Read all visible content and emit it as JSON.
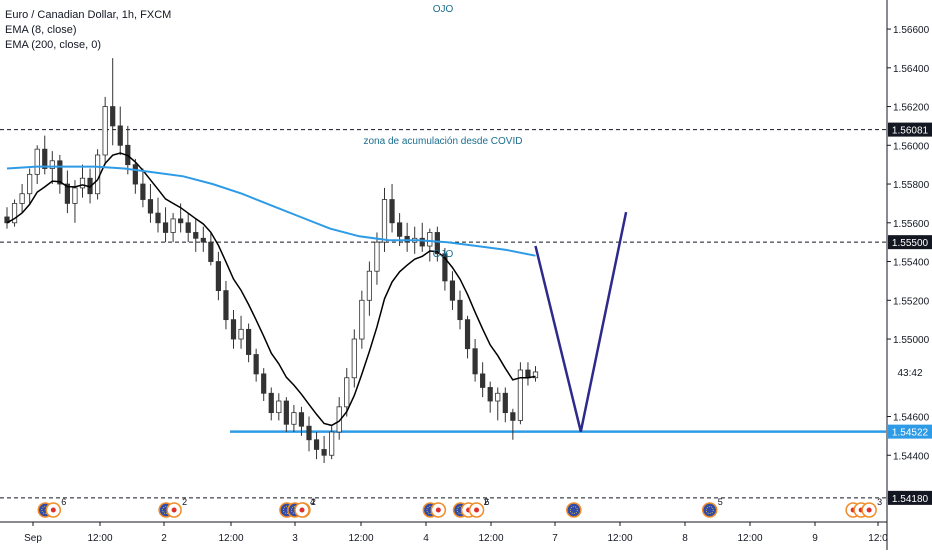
{
  "legend": {
    "symbol": "Euro / Canadian Dollar, 1h, FXCM",
    "ema_short": "EMA (8, close)",
    "ema_long": "EMA (200, close, 0)"
  },
  "annotations": {
    "top_label": "OJO",
    "mid_label": "OJO",
    "zone_label": "zona de acumulación desde COVID"
  },
  "chart_data": {
    "type": "candlestick",
    "x_ticks": [
      "Sep",
      "12:00",
      "2",
      "12:00",
      "3",
      "12:00",
      "4",
      "12:00",
      "7",
      "12:00",
      "8",
      "12:00",
      "9",
      "12:0"
    ],
    "y_ticks": [
      "1.56600",
      "1.56400",
      "1.56200",
      "1.56000",
      "1.55800",
      "1.55600",
      "1.55400",
      "1.55200",
      "1.55000",
      "1.54600",
      "1.54400"
    ],
    "ylim": [
      1.5404,
      1.5675
    ],
    "price_tags": [
      {
        "value": 1.56081,
        "label": "1.56081",
        "style": "dark"
      },
      {
        "value": 1.555,
        "label": "1.55500",
        "style": "dark"
      },
      {
        "value": 1.5483,
        "label": "43:42",
        "style": "light"
      },
      {
        "value": 1.54522,
        "label": "1.54522",
        "style": "blue"
      },
      {
        "value": 1.5418,
        "label": "1.54180",
        "style": "dark"
      }
    ],
    "horizontal_lines": [
      {
        "value": 1.56081,
        "style": "dashed"
      },
      {
        "value": 1.555,
        "style": "dashed"
      },
      {
        "value": 1.5418,
        "style": "dashed"
      },
      {
        "value": 1.54522,
        "style": "solid-blue"
      }
    ],
    "candles": [
      [
        1.5563,
        1.5568,
        1.5557,
        1.556
      ],
      [
        1.556,
        1.5572,
        1.5558,
        1.557
      ],
      [
        1.557,
        1.558,
        1.5565,
        1.5575
      ],
      [
        1.5575,
        1.5588,
        1.557,
        1.5585
      ],
      [
        1.5585,
        1.56,
        1.558,
        1.5598
      ],
      [
        1.5598,
        1.5605,
        1.5585,
        1.5588
      ],
      [
        1.5588,
        1.5597,
        1.558,
        1.5592
      ],
      [
        1.5592,
        1.5595,
        1.5575,
        1.558
      ],
      [
        1.558,
        1.5587,
        1.5565,
        1.557
      ],
      [
        1.557,
        1.5582,
        1.556,
        1.5578
      ],
      [
        1.5578,
        1.559,
        1.5573,
        1.5583
      ],
      [
        1.5583,
        1.5588,
        1.557,
        1.5575
      ],
      [
        1.5575,
        1.5598,
        1.5572,
        1.5595
      ],
      [
        1.5595,
        1.5625,
        1.559,
        1.562
      ],
      [
        1.562,
        1.5645,
        1.56,
        1.561
      ],
      [
        1.561,
        1.562,
        1.5595,
        1.56
      ],
      [
        1.56,
        1.561,
        1.5585,
        1.559
      ],
      [
        1.559,
        1.5593,
        1.5575,
        1.558
      ],
      [
        1.558,
        1.5588,
        1.5568,
        1.5572
      ],
      [
        1.5572,
        1.558,
        1.556,
        1.5565
      ],
      [
        1.5565,
        1.5573,
        1.5555,
        1.556
      ],
      [
        1.556,
        1.5568,
        1.555,
        1.5555
      ],
      [
        1.5555,
        1.5565,
        1.555,
        1.5562
      ],
      [
        1.5562,
        1.557,
        1.5555,
        1.556
      ],
      [
        1.556,
        1.5565,
        1.555,
        1.5555
      ],
      [
        1.5555,
        1.5562,
        1.5545,
        1.5552
      ],
      [
        1.5552,
        1.5558,
        1.5545,
        1.555
      ],
      [
        1.555,
        1.5555,
        1.5538,
        1.554
      ],
      [
        1.554,
        1.5545,
        1.552,
        1.5525
      ],
      [
        1.5525,
        1.553,
        1.5505,
        1.551
      ],
      [
        1.551,
        1.5515,
        1.5495,
        1.55
      ],
      [
        1.55,
        1.5512,
        1.5495,
        1.5505
      ],
      [
        1.5505,
        1.5508,
        1.5488,
        1.5492
      ],
      [
        1.5492,
        1.5495,
        1.5478,
        1.5482
      ],
      [
        1.5482,
        1.5485,
        1.5468,
        1.5472
      ],
      [
        1.5472,
        1.5475,
        1.5458,
        1.5462
      ],
      [
        1.5462,
        1.5472,
        1.5458,
        1.5468
      ],
      [
        1.5468,
        1.547,
        1.5452,
        1.5456
      ],
      [
        1.5456,
        1.5466,
        1.5452,
        1.5462
      ],
      [
        1.5462,
        1.5465,
        1.545,
        1.5455
      ],
      [
        1.5455,
        1.546,
        1.5442,
        1.5448
      ],
      [
        1.5448,
        1.5452,
        1.5438,
        1.5443
      ],
      [
        1.5443,
        1.545,
        1.5436,
        1.544
      ],
      [
        1.544,
        1.5455,
        1.5438,
        1.5452
      ],
      [
        1.5452,
        1.547,
        1.5448,
        1.5465
      ],
      [
        1.5465,
        1.5485,
        1.546,
        1.548
      ],
      [
        1.548,
        1.5505,
        1.5475,
        1.55
      ],
      [
        1.55,
        1.5525,
        1.5495,
        1.552
      ],
      [
        1.552,
        1.554,
        1.5512,
        1.5535
      ],
      [
        1.5535,
        1.5555,
        1.5528,
        1.555
      ],
      [
        1.555,
        1.5578,
        1.5545,
        1.5572
      ],
      [
        1.5572,
        1.558,
        1.5555,
        1.556
      ],
      [
        1.556,
        1.5565,
        1.5548,
        1.5553
      ],
      [
        1.5553,
        1.556,
        1.5545,
        1.555
      ],
      [
        1.555,
        1.5558,
        1.5544,
        1.5552
      ],
      [
        1.5552,
        1.556,
        1.5545,
        1.5548
      ],
      [
        1.5548,
        1.5557,
        1.554,
        1.5555
      ],
      [
        1.5555,
        1.5558,
        1.554,
        1.5544
      ],
      [
        1.5544,
        1.5547,
        1.5525,
        1.553
      ],
      [
        1.553,
        1.5535,
        1.5515,
        1.552
      ],
      [
        1.552,
        1.5525,
        1.5505,
        1.551
      ],
      [
        1.551,
        1.5512,
        1.549,
        1.5495
      ],
      [
        1.5495,
        1.55,
        1.5478,
        1.5482
      ],
      [
        1.5482,
        1.5488,
        1.547,
        1.5475
      ],
      [
        1.5475,
        1.5478,
        1.5462,
        1.5468
      ],
      [
        1.5468,
        1.5475,
        1.5458,
        1.5472
      ],
      [
        1.5472,
        1.5475,
        1.5457,
        1.5462
      ],
      [
        1.5462,
        1.5464,
        1.5448,
        1.5458
      ],
      [
        1.5458,
        1.5488,
        1.5456,
        1.5484
      ],
      [
        1.5484,
        1.5488,
        1.5476,
        1.548
      ],
      [
        1.548,
        1.5486,
        1.5478,
        1.5483
      ]
    ],
    "ema_200": [
      1.5588,
      1.5589,
      1.5589,
      1.5589,
      1.5588,
      1.5586,
      1.5584,
      1.558,
      1.5575,
      1.5569,
      1.5563,
      1.5557,
      1.5553,
      1.5551,
      1.5551,
      1.555,
      1.5548,
      1.5546,
      1.5543
    ],
    "projection": [
      [
        70,
        1.5548
      ],
      [
        76,
        1.54522
      ],
      [
        82,
        1.55655
      ]
    ],
    "events": [
      {
        "index": 6,
        "flags": [
          "EU",
          "CA"
        ],
        "badge": "6"
      },
      {
        "index": 22,
        "flags": [
          "EU",
          "CA"
        ],
        "badge": "2"
      },
      {
        "index": 38,
        "flags": [
          "EU",
          "EU",
          "CA"
        ],
        "badge": "2"
      },
      {
        "index": 40,
        "flags": [
          "CA"
        ],
        "badge": "4"
      },
      {
        "index": 57,
        "flags": [
          "EU",
          "CA"
        ],
        "badge": ""
      },
      {
        "index": 61,
        "flags": [
          "EU",
          "CA",
          "CA"
        ],
        "badge": "6"
      },
      {
        "index": 63,
        "flags": [],
        "badge": "2"
      },
      {
        "index": 76,
        "flags": [
          "EU"
        ],
        "badge": ""
      },
      {
        "index": 94,
        "flags": [
          "EU"
        ],
        "badge": "5"
      },
      {
        "index": 113,
        "flags": [
          "CA",
          "CA",
          "CA"
        ],
        "badge": "3"
      }
    ]
  },
  "colors": {
    "ema_200": "#2e9be6",
    "ema_8": "#000000",
    "support_line": "#2e9be6",
    "projection": "#2d2a8c",
    "candle": "#333333",
    "text": "#131722",
    "tag_dark": "#131722",
    "tag_blue": "#2e9be6",
    "annotation": "#1b6e8f"
  }
}
